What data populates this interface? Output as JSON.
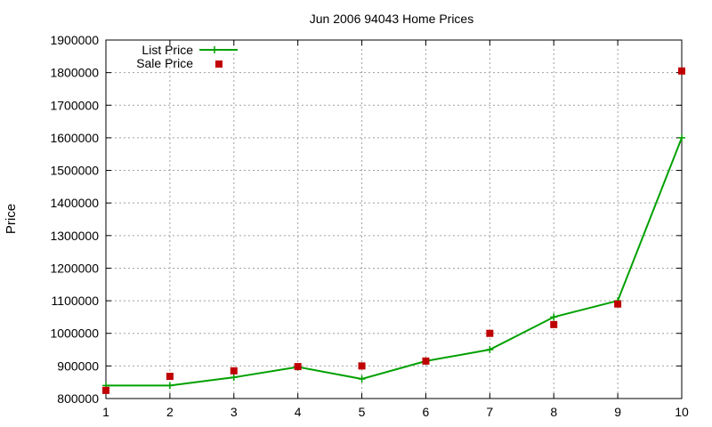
{
  "chart_data": {
    "type": "line",
    "title": "Jun 2006 94043 Home Prices",
    "ylabel": "Price",
    "xlabel": "",
    "xlim": [
      1,
      10
    ],
    "ylim": [
      800000,
      1900000
    ],
    "x_ticks": [
      "1",
      "2",
      "3",
      "4",
      "5",
      "6",
      "7",
      "8",
      "9",
      "10"
    ],
    "y_ticks": [
      "800000",
      "900000",
      "1000000",
      "1100000",
      "1200000",
      "1300000",
      "1400000",
      "1500000",
      "1600000",
      "1700000",
      "1800000",
      "1900000"
    ],
    "grid": true,
    "legend_position": "top-left",
    "x": [
      1,
      2,
      3,
      4,
      5,
      6,
      7,
      8,
      9,
      10
    ],
    "series": [
      {
        "name": "List Price",
        "style": "line-with-plus-markers",
        "color": "#00a000",
        "values": [
          840000,
          840000,
          865000,
          897000,
          860000,
          915000,
          950000,
          1050000,
          1100000,
          1600000
        ]
      },
      {
        "name": "Sale Price",
        "style": "square-markers",
        "color": "#c00000",
        "values": [
          825000,
          868000,
          885000,
          898000,
          900000,
          915000,
          1000000,
          1027000,
          1090000,
          1805000
        ]
      }
    ]
  }
}
